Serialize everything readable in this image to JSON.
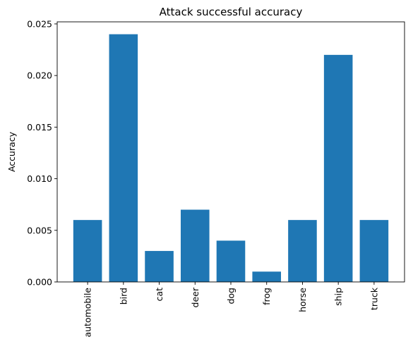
{
  "chart_data": {
    "type": "bar",
    "title": "Attack successful accuracy",
    "xlabel": "",
    "ylabel": "Accuracy",
    "categories": [
      "automobile",
      "bird",
      "cat",
      "deer",
      "dog",
      "frog",
      "horse",
      "ship",
      "truck"
    ],
    "values": [
      0.006,
      0.024,
      0.003,
      0.007,
      0.004,
      0.001,
      0.006,
      0.022,
      0.006
    ],
    "ylim": [
      0,
      0.0252
    ],
    "yticks": [
      "0.000",
      "0.005",
      "0.010",
      "0.015",
      "0.020",
      "0.025"
    ],
    "grid": false,
    "bar_color": "#1f77b4"
  }
}
